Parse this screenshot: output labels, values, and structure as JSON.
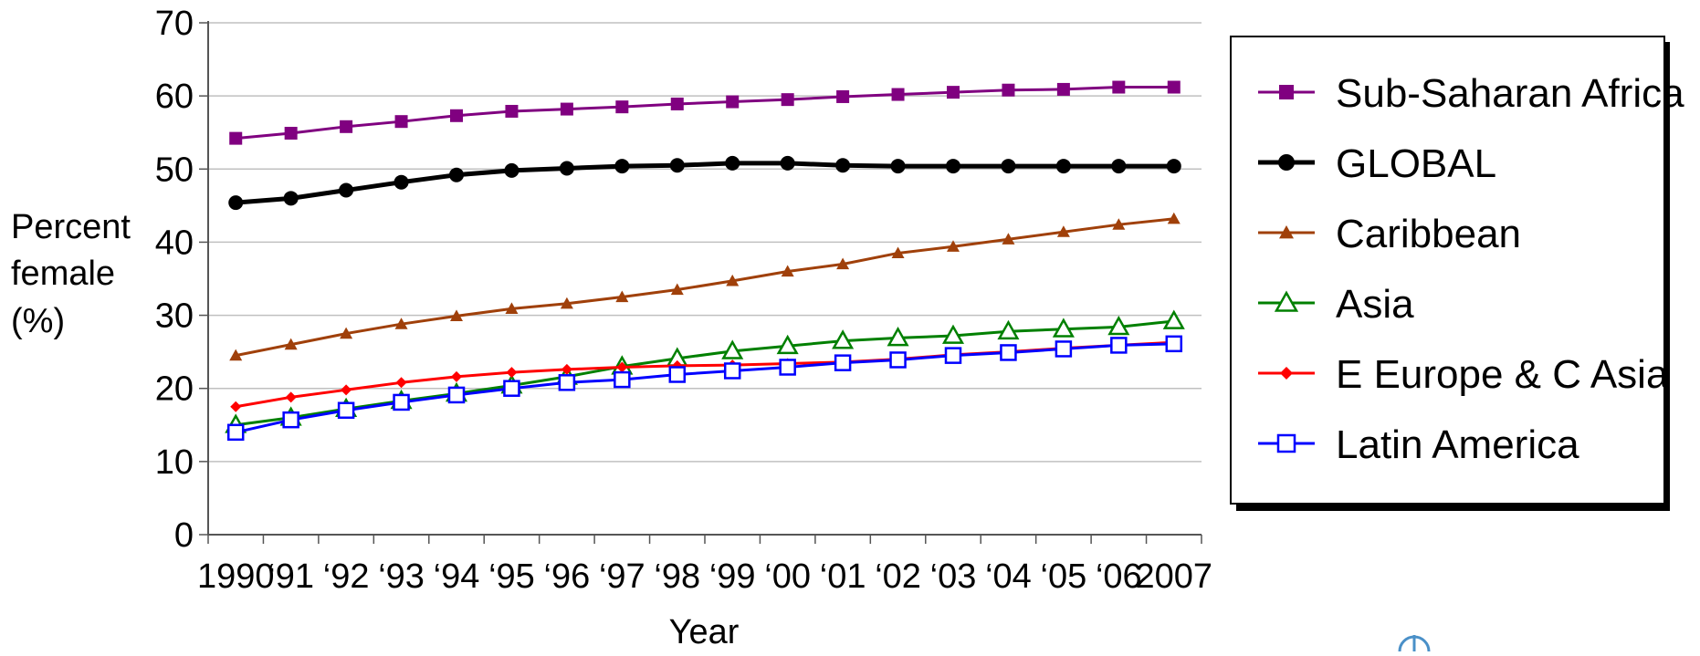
{
  "chart_data": {
    "type": "line",
    "categories": [
      "1990",
      "‘91",
      "‘92",
      "‘93",
      "‘94",
      "‘95",
      "‘96",
      "‘97",
      "‘98",
      "‘99",
      "‘00",
      "‘01",
      "‘02",
      "‘03",
      "‘04",
      "‘05",
      "‘06",
      "2007"
    ],
    "title": "",
    "xlabel": "Year",
    "ylabel": "Percent female (%)",
    "ylabel_lines": [
      "Percent",
      "female",
      "(%)"
    ],
    "ylim": [
      0,
      70
    ],
    "yticks": [
      0,
      10,
      20,
      30,
      40,
      50,
      60,
      70
    ],
    "grid": true,
    "legend_position": "right",
    "series": [
      {
        "name": "Sub-Saharan Africa",
        "color": "#800080",
        "marker": "square-filled",
        "values": [
          54.2,
          54.9,
          55.8,
          56.5,
          57.3,
          57.9,
          58.2,
          58.5,
          58.9,
          59.2,
          59.5,
          59.9,
          60.2,
          60.5,
          60.8,
          60.9,
          61.2,
          61.2
        ]
      },
      {
        "name": "GLOBAL",
        "color": "#000000",
        "marker": "circle-filled",
        "values": [
          45.4,
          46.0,
          47.1,
          48.2,
          49.2,
          49.8,
          50.1,
          50.4,
          50.5,
          50.8,
          50.8,
          50.5,
          50.4,
          50.4,
          50.4,
          50.4,
          50.4,
          50.4
        ]
      },
      {
        "name": "Caribbean",
        "color": "#A0400A",
        "marker": "triangle-filled",
        "values": [
          24.5,
          26.0,
          27.5,
          28.8,
          29.9,
          30.9,
          31.6,
          32.5,
          33.5,
          34.7,
          36.0,
          37.0,
          38.5,
          39.4,
          40.4,
          41.4,
          42.4,
          43.2
        ]
      },
      {
        "name": "Asia",
        "color": "#008000",
        "marker": "triangle-open",
        "values": [
          15.0,
          16.0,
          17.2,
          18.3,
          19.3,
          20.4,
          21.6,
          23.0,
          24.1,
          25.1,
          25.8,
          26.5,
          26.9,
          27.2,
          27.8,
          28.1,
          28.4,
          29.2
        ]
      },
      {
        "name": "E Europe & C Asia",
        "color": "#FF0000",
        "marker": "diamond-filled",
        "values": [
          17.5,
          18.8,
          19.8,
          20.8,
          21.6,
          22.2,
          22.6,
          22.9,
          23.1,
          23.2,
          23.4,
          23.6,
          24.0,
          24.6,
          25.0,
          25.5,
          25.9,
          26.3
        ]
      },
      {
        "name": "Latin America",
        "color": "#0000FF",
        "marker": "square-open",
        "values": [
          14.0,
          15.7,
          17.0,
          18.1,
          19.1,
          20.0,
          20.8,
          21.2,
          21.9,
          22.4,
          22.9,
          23.5,
          23.9,
          24.5,
          24.9,
          25.4,
          25.9,
          26.1
        ]
      }
    ]
  }
}
